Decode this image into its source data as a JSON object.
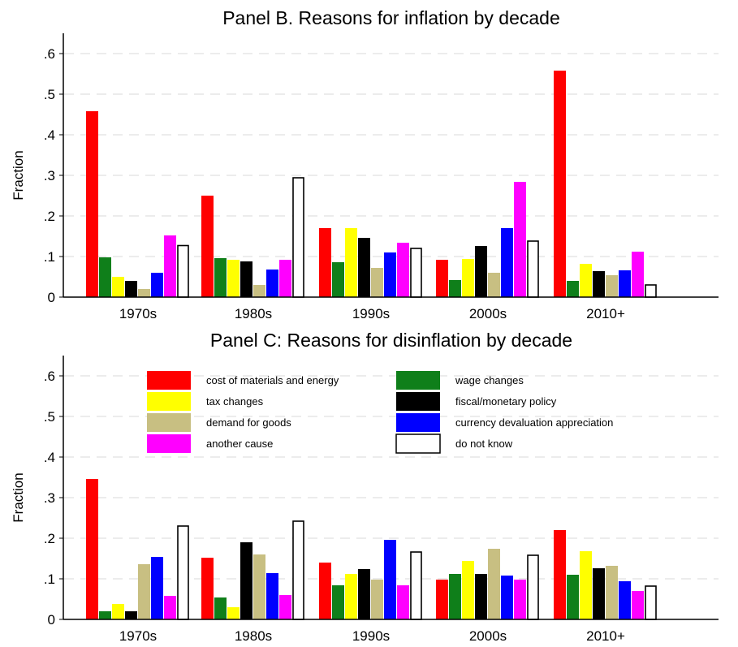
{
  "chart_data": [
    {
      "type": "bar",
      "title": "Panel B. Reasons for inflation by decade",
      "xlabel": "",
      "ylabel": "Fraction",
      "ylim": [
        0,
        0.65
      ],
      "yticks": [
        "0",
        ".1",
        ".2",
        ".3",
        ".4",
        ".5",
        ".6"
      ],
      "grid": true,
      "categories": [
        "1970s",
        "1980s",
        "1990s",
        "2000s",
        "2010+"
      ],
      "series": [
        {
          "name": "cost of materials and energy",
          "color": "#ff0000",
          "values": [
            0.458,
            0.25,
            0.17,
            0.092,
            0.558
          ]
        },
        {
          "name": "wage changes",
          "color": "#0f7f1a",
          "values": [
            0.098,
            0.096,
            0.086,
            0.042,
            0.04
          ]
        },
        {
          "name": "tax changes",
          "color": "#ffff00",
          "values": [
            0.05,
            0.092,
            0.17,
            0.094,
            0.082
          ]
        },
        {
          "name": "fiscal/monetary policy",
          "color": "#000000",
          "values": [
            0.04,
            0.088,
            0.146,
            0.126,
            0.064
          ]
        },
        {
          "name": "demand for goods",
          "color": "#c8bf82",
          "values": [
            0.02,
            0.03,
            0.072,
            0.06,
            0.054
          ]
        },
        {
          "name": "currency devaluation appreciation",
          "color": "#0000ff",
          "values": [
            0.06,
            0.068,
            0.11,
            0.17,
            0.066
          ]
        },
        {
          "name": "another cause",
          "color": "#ff00ff",
          "values": [
            0.152,
            0.092,
            0.134,
            0.284,
            0.112
          ]
        },
        {
          "name": "do not know",
          "color": "#ffffff",
          "values": [
            0.127,
            0.294,
            0.12,
            0.138,
            0.03
          ]
        }
      ]
    },
    {
      "type": "bar",
      "title": "Panel C: Reasons for disinflation by decade",
      "xlabel": "",
      "ylabel": "Fraction",
      "ylim": [
        0,
        0.65
      ],
      "yticks": [
        "0",
        ".1",
        ".2",
        ".3",
        ".4",
        ".5",
        ".6"
      ],
      "grid": true,
      "legend_position": "top",
      "categories": [
        "1970s",
        "1980s",
        "1990s",
        "2000s",
        "2010+"
      ],
      "series": [
        {
          "name": "cost of materials and energy",
          "color": "#ff0000",
          "values": [
            0.346,
            0.152,
            0.14,
            0.098,
            0.22
          ]
        },
        {
          "name": "wage changes",
          "color": "#0f7f1a",
          "values": [
            0.02,
            0.054,
            0.084,
            0.112,
            0.11
          ]
        },
        {
          "name": "tax changes",
          "color": "#ffff00",
          "values": [
            0.038,
            0.03,
            0.112,
            0.144,
            0.168
          ]
        },
        {
          "name": "fiscal/monetary policy",
          "color": "#000000",
          "values": [
            0.02,
            0.19,
            0.124,
            0.112,
            0.126
          ]
        },
        {
          "name": "demand for goods",
          "color": "#c8bf82",
          "values": [
            0.136,
            0.16,
            0.098,
            0.174,
            0.132
          ]
        },
        {
          "name": "currency devaluation appreciation",
          "color": "#0000ff",
          "values": [
            0.154,
            0.114,
            0.196,
            0.108,
            0.094
          ]
        },
        {
          "name": "another cause",
          "color": "#ff00ff",
          "values": [
            0.058,
            0.06,
            0.084,
            0.098,
            0.07
          ]
        },
        {
          "name": "do not know",
          "color": "#ffffff",
          "values": [
            0.23,
            0.242,
            0.166,
            0.158,
            0.082
          ]
        }
      ]
    }
  ]
}
